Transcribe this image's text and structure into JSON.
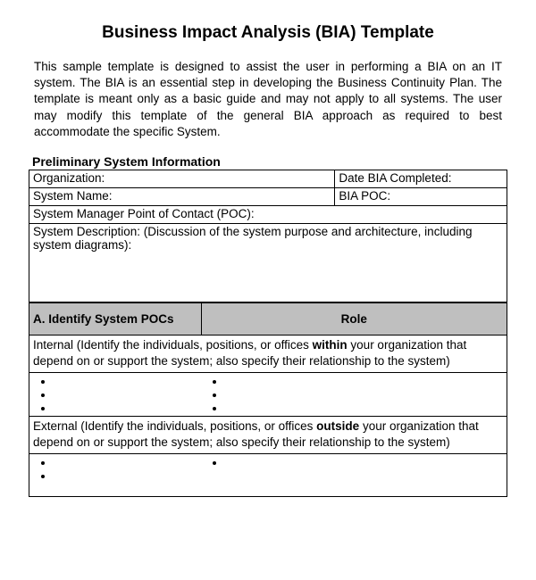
{
  "document": {
    "title": "Business Impact Analysis (BIA) Template",
    "intro": "This sample template is designed to assist the user in performing a BIA on an IT system.   The BIA is an essential step in developing the Business Continuity Plan.  The template is meant only as a basic guide and may not apply to all systems.  The user may modify this template of the general BIA approach as required to best accommodate the specific System.",
    "section_heading": "Preliminary System Information",
    "row1": {
      "a": "Organization:",
      "b": "Date BIA Completed:"
    },
    "row2": {
      "a": "System Name:",
      "b": "BIA POC:"
    },
    "row3": "System Manager Point of Contact (POC):",
    "row4": "System Description: (Discussion of the system purpose and architecture, including system diagrams):",
    "header": {
      "left": "A. Identify System POCs",
      "right": "Role"
    },
    "internal_instruct_pre": "Internal (Identify the individuals, positions,  or offices ",
    "internal_instruct_bold": "within",
    "internal_instruct_post": " your organization that depend on or support the system; also specify their relationship to the system)",
    "external_instruct_pre": "External (Identify the individuals, positions,  or offices ",
    "external_instruct_bold": "outside",
    "external_instruct_post": " your organization that depend on or support the system; also specify their relationship to the system)"
  },
  "style": {
    "page_bg": "#ffffff",
    "text_color": "#000000",
    "header_bg": "#BFBFBF",
    "border_color": "#000000",
    "title_fontsize": 19,
    "body_fontsize": 13.5,
    "section_fontsize": 14
  }
}
